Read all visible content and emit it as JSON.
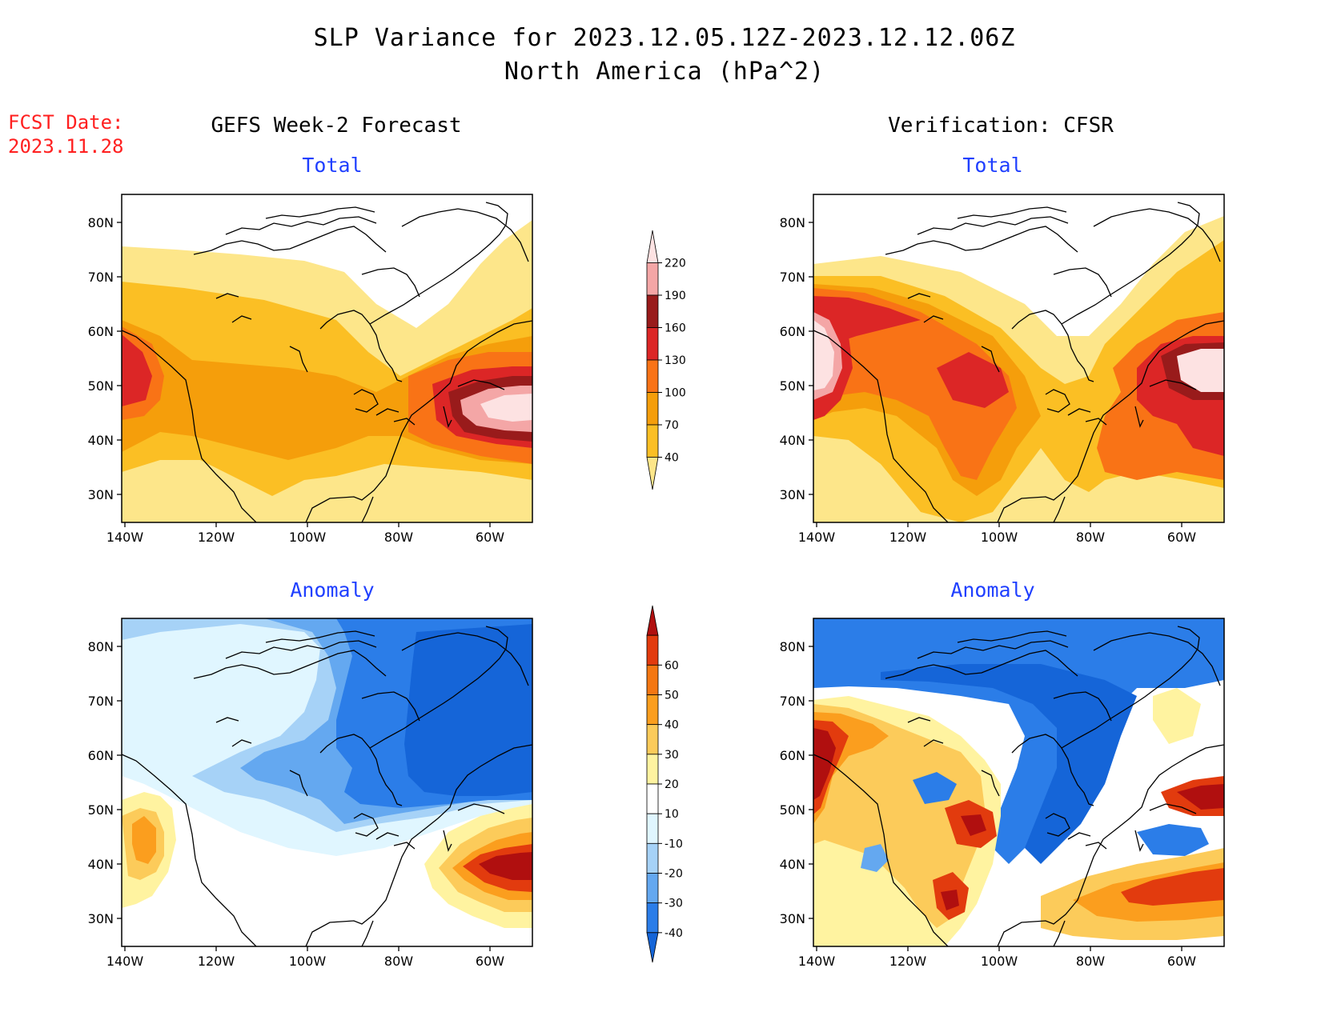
{
  "header": {
    "title_line1": "SLP Variance for 2023.12.05.12Z-2023.12.12.06Z",
    "title_line2": "North America (hPa^2)",
    "fcst_label": "FCST Date:",
    "fcst_date": "2023.11.28"
  },
  "columns": {
    "left": "GEFS Week-2 Forecast",
    "right": "Verification: CFSR"
  },
  "panels": {
    "top_left": "Total",
    "top_right": "Total",
    "bottom_left": "Anomaly",
    "bottom_right": "Anomaly"
  },
  "axes": {
    "lat_labels": [
      "80N",
      "70N",
      "60N",
      "50N",
      "40N",
      "30N"
    ],
    "lon_labels": [
      "140W",
      "120W",
      "100W",
      "80W",
      "60W"
    ]
  },
  "colorbars": {
    "total": {
      "levels": [
        "40",
        "70",
        "100",
        "130",
        "160",
        "190",
        "220"
      ],
      "colors": [
        "#fde68a",
        "#fbbf24",
        "#f59e0b",
        "#f97316",
        "#dc2626",
        "#991b1b",
        "#f4a6a6",
        "#fde2e2"
      ]
    },
    "anomaly": {
      "levels": [
        "-40",
        "-30",
        "-20",
        "-10",
        "10",
        "20",
        "30",
        "40",
        "50",
        "60"
      ],
      "colors": [
        "#1565d8",
        "#2b7de8",
        "#64a8f0",
        "#a6d2f7",
        "#e0f6ff",
        "#ffffff",
        "#fff3a0",
        "#fccb5a",
        "#fb9e1e",
        "#f47712",
        "#e23b0e",
        "#b00f0f"
      ]
    }
  }
}
